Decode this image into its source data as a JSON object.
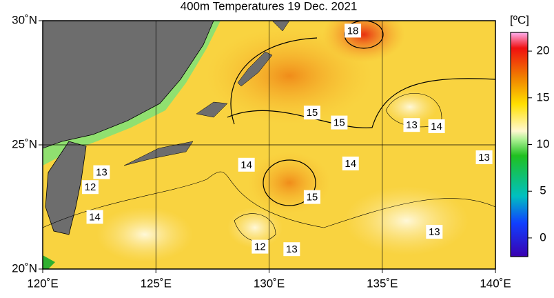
{
  "chart_data": {
    "type": "map",
    "title": "400m Temperatures  19 Dec. 2021",
    "xlim": [
      120,
      140
    ],
    "ylim": [
      20,
      30
    ],
    "xticks": [
      {
        "value": 120,
        "label": "120˚E"
      },
      {
        "value": 125,
        "label": "125˚E"
      },
      {
        "value": 130,
        "label": "130˚E"
      },
      {
        "value": 135,
        "label": "135˚E"
      },
      {
        "value": 140,
        "label": "140˚E"
      }
    ],
    "yticks": [
      {
        "value": 20,
        "label": "20˚N"
      },
      {
        "value": 25,
        "label": "25˚N"
      },
      {
        "value": 30,
        "label": "30˚N"
      }
    ],
    "grid": true,
    "colorbar": {
      "label": "[ºC]",
      "lim": [
        -2,
        22
      ],
      "ticks": [
        0,
        5,
        10,
        15,
        20
      ]
    },
    "contour_labels": [
      {
        "value": 18,
        "lon": 133.7,
        "lat": 29.6
      },
      {
        "value": 15,
        "lon": 131.9,
        "lat": 26.3
      },
      {
        "value": 15,
        "lon": 133.1,
        "lat": 25.9
      },
      {
        "value": 13,
        "lon": 136.3,
        "lat": 25.8
      },
      {
        "value": 14,
        "lon": 137.4,
        "lat": 25.75
      },
      {
        "value": 13,
        "lon": 139.5,
        "lat": 24.5
      },
      {
        "value": 14,
        "lon": 129.0,
        "lat": 24.2
      },
      {
        "value": 14,
        "lon": 133.6,
        "lat": 24.25
      },
      {
        "value": 13,
        "lon": 122.6,
        "lat": 23.9
      },
      {
        "value": 12,
        "lon": 122.1,
        "lat": 23.3
      },
      {
        "value": 15,
        "lon": 131.9,
        "lat": 22.9
      },
      {
        "value": 14,
        "lon": 122.3,
        "lat": 22.1
      },
      {
        "value": 13,
        "lon": 137.3,
        "lat": 21.5
      },
      {
        "value": 12,
        "lon": 129.6,
        "lat": 20.9
      },
      {
        "value": 13,
        "lon": 131.0,
        "lat": 20.8
      }
    ]
  }
}
